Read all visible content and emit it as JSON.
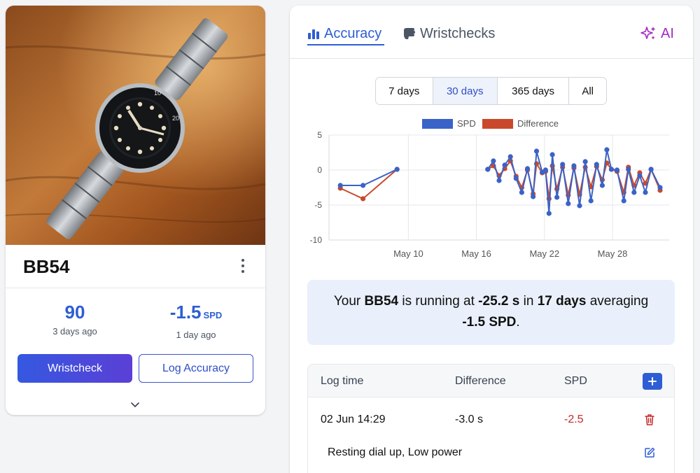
{
  "watch": {
    "name": "BB54",
    "photo_alt": "Tudor Black Bay 54 watch on wooden table",
    "stats": {
      "left": {
        "value": "90",
        "sub": "3 days ago"
      },
      "right": {
        "value": "-1.5",
        "unit": "SPD",
        "sub": "1 day ago"
      }
    },
    "buttons": {
      "wristcheck": "Wristcheck",
      "log_accuracy": "Log Accuracy"
    }
  },
  "tabs": {
    "accuracy": "Accuracy",
    "wristchecks": "Wristchecks",
    "ai": "AI"
  },
  "ranges": [
    "7 days",
    "30 days",
    "365 days",
    "All"
  ],
  "selected_range": "30 days",
  "chart_data": {
    "type": "line",
    "x_ticks": [
      "May 10",
      "May 16",
      "May 22",
      "May 28"
    ],
    "y_ticks": [
      "5",
      "0",
      "-5",
      "-10"
    ],
    "ylim": [
      -10,
      5
    ],
    "legend_position": "top",
    "series": [
      {
        "name": "SPD",
        "color": "#3a63c7",
        "points": [
          [
            "2024-05-04",
            -2.2
          ],
          [
            "2024-05-06",
            -2.2
          ],
          [
            "2024-05-09",
            0.1
          ],
          [
            "2024-05-17",
            0.1
          ],
          [
            "2024-05-17.5",
            1.3
          ],
          [
            "2024-05-18",
            -1.5
          ],
          [
            "2024-05-18.5",
            0.7
          ],
          [
            "2024-05-19",
            1.9
          ],
          [
            "2024-05-19.5",
            -1.2
          ],
          [
            "2024-05-20",
            -3.2
          ],
          [
            "2024-05-20.5",
            0.2
          ],
          [
            "2024-05-21",
            -3.8
          ],
          [
            "2024-05-21.3",
            2.7
          ],
          [
            "2024-05-21.8",
            -0.3
          ],
          [
            "2024-05-22.1",
            0.0
          ],
          [
            "2024-05-22.4",
            -6.2
          ],
          [
            "2024-05-22.7",
            2.2
          ],
          [
            "2024-05-23.1",
            -3.9
          ],
          [
            "2024-05-23.6",
            0.8
          ],
          [
            "2024-05-24.1",
            -4.8
          ],
          [
            "2024-05-24.6",
            0.6
          ],
          [
            "2024-05-25.1",
            -5.1
          ],
          [
            "2024-05-25.6",
            1.2
          ],
          [
            "2024-05-26.1",
            -4.4
          ],
          [
            "2024-05-26.6",
            0.8
          ],
          [
            "2024-05-27.1",
            -2.2
          ],
          [
            "2024-05-27.5",
            2.9
          ],
          [
            "2024-05-27.9",
            0.1
          ],
          [
            "2024-05-28.4",
            0.0
          ],
          [
            "2024-05-29",
            -4.4
          ],
          [
            "2024-05-29.4",
            0.1
          ],
          [
            "2024-05-29.9",
            -3.2
          ],
          [
            "2024-05-30.4",
            -0.8
          ],
          [
            "2024-05-30.9",
            -3.2
          ],
          [
            "2024-05-31.4",
            0.1
          ],
          [
            "2024-06-01.2",
            -2.5
          ]
        ]
      },
      {
        "name": "Difference",
        "color": "#c9492c",
        "points": [
          [
            "2024-05-04",
            -2.6
          ],
          [
            "2024-05-06",
            -4.1
          ],
          [
            "2024-05-09",
            0.1
          ],
          [
            "2024-05-17",
            0.1
          ],
          [
            "2024-05-17.5",
            0.6
          ],
          [
            "2024-05-18",
            -0.8
          ],
          [
            "2024-05-18.5",
            0.2
          ],
          [
            "2024-05-19",
            1.3
          ],
          [
            "2024-05-19.5",
            -0.9
          ],
          [
            "2024-05-20",
            -2.5
          ],
          [
            "2024-05-20.5",
            0.0
          ],
          [
            "2024-05-21",
            -3.4
          ],
          [
            "2024-05-21.3",
            0.9
          ],
          [
            "2024-05-21.8",
            -0.4
          ],
          [
            "2024-05-22.1",
            -0.2
          ],
          [
            "2024-05-22.4",
            -4.1
          ],
          [
            "2024-05-22.7",
            0.6
          ],
          [
            "2024-05-23.1",
            -2.7
          ],
          [
            "2024-05-23.6",
            0.4
          ],
          [
            "2024-05-24.1",
            -3.6
          ],
          [
            "2024-05-24.6",
            0.3
          ],
          [
            "2024-05-25.1",
            -3.5
          ],
          [
            "2024-05-25.6",
            0.4
          ],
          [
            "2024-05-26.1",
            -2.4
          ],
          [
            "2024-05-26.6",
            0.5
          ],
          [
            "2024-05-27.1",
            -1.4
          ],
          [
            "2024-05-27.5",
            1.0
          ],
          [
            "2024-05-27.9",
            0.1
          ],
          [
            "2024-05-28.4",
            -0.2
          ],
          [
            "2024-05-29",
            -3.2
          ],
          [
            "2024-05-29.4",
            0.4
          ],
          [
            "2024-05-29.9",
            -2.2
          ],
          [
            "2024-05-30.4",
            -0.4
          ],
          [
            "2024-05-30.9",
            -1.9
          ],
          [
            "2024-05-31.4",
            0.1
          ],
          [
            "2024-06-01.2",
            -2.9
          ]
        ]
      }
    ]
  },
  "summary": {
    "p1": "Your ",
    "name": "BB54",
    "p2": " is running at ",
    "drift": "-25.2 s",
    "p3": " in ",
    "days": "17 days",
    "p4": " averaging ",
    "avg": "-1.5 SPD",
    "p5": "."
  },
  "log_table": {
    "headers": {
      "log_time": "Log time",
      "difference": "Difference",
      "spd": "SPD"
    },
    "rows": [
      {
        "time": "02 Jun 14:29",
        "difference": "-3.0 s",
        "spd": "-2.5",
        "note": "Resting dial up, Low power"
      }
    ]
  },
  "colors": {
    "accent": "#2e5ed3",
    "ai": "#a32ac4",
    "negative": "#c62828",
    "summary_bg": "#e9f0fb"
  }
}
